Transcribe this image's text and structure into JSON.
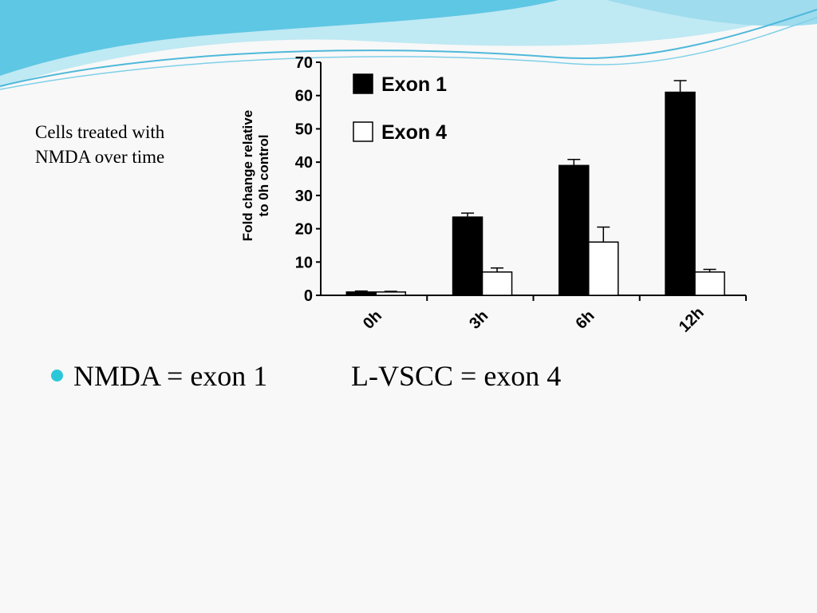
{
  "slide": {
    "caption": "Cells treated with\nNMDA over time",
    "bullet": {
      "left_text": "NMDA = exon 1",
      "right_text": "L-VSCC = exon 4"
    },
    "colors": {
      "bullet": "#2cc6d9",
      "wave_light": "#bfe9f3",
      "wave_dark": "#5ec7e4"
    }
  },
  "chart_data": {
    "type": "bar",
    "categories": [
      "0h",
      "3h",
      "6h",
      "12h"
    ],
    "series": [
      {
        "name": "Exon 1",
        "values": [
          1,
          23.5,
          39,
          61
        ],
        "errors": [
          0.3,
          1.2,
          1.8,
          3.5
        ],
        "color": "#000000"
      },
      {
        "name": "Exon 4",
        "values": [
          1,
          7,
          16,
          7
        ],
        "errors": [
          0.2,
          1.2,
          4.5,
          0.8
        ],
        "color": "#ffffff"
      }
    ],
    "ylabel": "Fold change relative to 0h control",
    "ylim": [
      0,
      70
    ],
    "yticks": [
      0,
      10,
      20,
      30,
      40,
      50,
      60,
      70
    ],
    "legend_position": "top-left",
    "grid": false
  }
}
